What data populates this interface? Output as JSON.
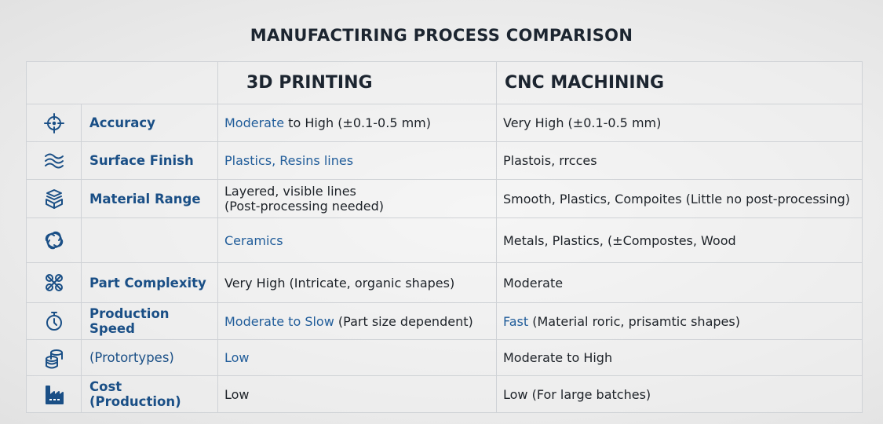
{
  "title": "MANUFACTIRING PROCESS COMPARISON",
  "columns": [
    "",
    "3D PRINTING",
    "CNC MACHINING"
  ],
  "accent_color": "#1a4f86",
  "rows": [
    {
      "icon": "crosshair-icon",
      "label": "Accuracy",
      "bold": true,
      "printing": {
        "blue": "Moderate",
        "rest": " to High (±0.1-0.5 mm)"
      },
      "cnc": {
        "blue": "",
        "rest": "Very High (±0.1-0.5 mm)"
      }
    },
    {
      "icon": "waves-icon",
      "label": "Surface Finish",
      "bold": true,
      "printing": {
        "blue": "Plastics, Resins lines",
        "rest": ""
      },
      "cnc": {
        "blue": "",
        "rest": "Plastois, rrcces"
      }
    },
    {
      "icon": "layers-box-icon",
      "label": "Material Range",
      "bold": true,
      "printing": {
        "blue": "",
        "rest": "Layered, visible lines",
        "line2": "(Post-processing needed)"
      },
      "cnc": {
        "blue": "",
        "rest": "Smooth, Plastics, Compoites (Little no post-processing)"
      }
    },
    {
      "icon": "swirl-icon",
      "label": "",
      "bold": true,
      "printing": {
        "blue": "Ceramics",
        "rest": ""
      },
      "cnc": {
        "blue": "",
        "rest": "Metals, Plastics, (±Compostes,  Wood"
      }
    },
    {
      "icon": "knot-icon",
      "label": "Part Complexity",
      "bold": true,
      "printing": {
        "blue": "",
        "rest": "Very High (Intricate, organic shapes)"
      },
      "cnc": {
        "blue": "",
        "rest": "Moderate"
      }
    },
    {
      "icon": "stopwatch-icon",
      "label": "Production Speed",
      "bold": true,
      "printing": {
        "blue": "Moderate to Slow",
        "rest": " (Part size dependent)"
      },
      "cnc": {
        "blue": "Fast",
        "rest": " (Material roric, prisamtic shapes)"
      }
    },
    {
      "icon": "coins-icon",
      "label": "(Protortypes)",
      "bold": false,
      "printing": {
        "blue": "Low",
        "rest": ""
      },
      "cnc": {
        "blue": "",
        "rest": "Moderate to High"
      }
    },
    {
      "icon": "factory-icon",
      "label": "Cost (Production)",
      "bold": true,
      "printing": {
        "blue": "",
        "rest": "Low"
      },
      "cnc": {
        "blue": "",
        "rest": "Low (For large batches)"
      }
    }
  ]
}
